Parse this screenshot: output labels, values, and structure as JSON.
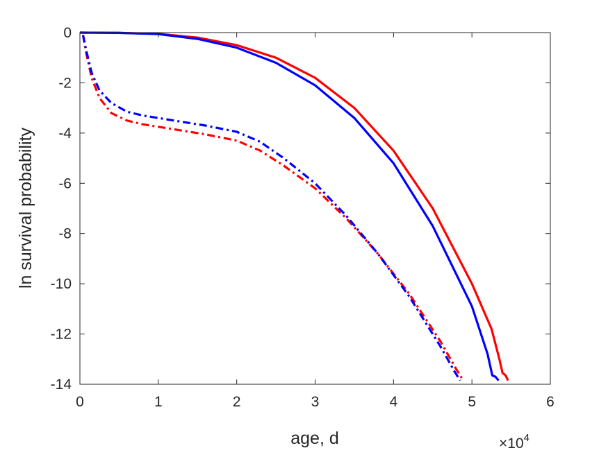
{
  "chart_data": {
    "type": "line",
    "xlabel": "age, d",
    "ylabel": "ln survival probability",
    "x_multiplier_label": "×10",
    "x_multiplier_exponent": "4",
    "xlim": [
      0,
      60000
    ],
    "ylim": [
      -14,
      0
    ],
    "xticks": [
      0,
      10000,
      20000,
      30000,
      40000,
      50000,
      60000
    ],
    "xtick_labels": [
      "0",
      "1",
      "2",
      "3",
      "4",
      "5",
      "6"
    ],
    "yticks": [
      0,
      -2,
      -4,
      -6,
      -8,
      -10,
      -12,
      -14
    ],
    "ytick_labels": [
      "0",
      "-2",
      "-4",
      "-6",
      "-8",
      "-10",
      "-12",
      "-14"
    ],
    "grid": false,
    "series": [
      {
        "color": "#ff0000",
        "style": "solid",
        "points": [
          [
            0,
            0
          ],
          [
            5000,
            -0.01
          ],
          [
            10000,
            -0.05
          ],
          [
            15000,
            -0.2
          ],
          [
            20000,
            -0.5
          ],
          [
            25000,
            -1.0
          ],
          [
            30000,
            -1.8
          ],
          [
            35000,
            -3.0
          ],
          [
            40000,
            -4.7
          ],
          [
            45000,
            -7.0
          ],
          [
            50000,
            -10.0
          ],
          [
            52500,
            -11.8
          ],
          [
            53500,
            -13.0
          ],
          [
            53900,
            -13.55
          ],
          [
            54300,
            -13.65
          ],
          [
            54600,
            -13.85
          ]
        ]
      },
      {
        "color": "#0000ff",
        "style": "solid",
        "points": [
          [
            0,
            0
          ],
          [
            5000,
            -0.01
          ],
          [
            10000,
            -0.06
          ],
          [
            15000,
            -0.25
          ],
          [
            20000,
            -0.6
          ],
          [
            25000,
            -1.2
          ],
          [
            30000,
            -2.1
          ],
          [
            35000,
            -3.4
          ],
          [
            40000,
            -5.2
          ],
          [
            45000,
            -7.7
          ],
          [
            50000,
            -10.9
          ],
          [
            52000,
            -12.8
          ],
          [
            52600,
            -13.65
          ],
          [
            53000,
            -13.7
          ],
          [
            53400,
            -13.85
          ]
        ]
      },
      {
        "color": "#ff0000",
        "style": "dashdot",
        "points": [
          [
            400,
            -0.1
          ],
          [
            800,
            -0.8
          ],
          [
            1500,
            -1.8
          ],
          [
            2500,
            -2.6
          ],
          [
            4000,
            -3.2
          ],
          [
            6000,
            -3.5
          ],
          [
            8000,
            -3.65
          ],
          [
            10000,
            -3.75
          ],
          [
            13000,
            -3.9
          ],
          [
            16000,
            -4.05
          ],
          [
            20000,
            -4.3
          ],
          [
            23000,
            -4.7
          ],
          [
            26000,
            -5.3
          ],
          [
            30000,
            -6.2
          ],
          [
            34000,
            -7.4
          ],
          [
            38000,
            -8.8
          ],
          [
            42000,
            -10.4
          ],
          [
            46000,
            -12.3
          ],
          [
            48000,
            -13.4
          ],
          [
            48900,
            -13.85
          ]
        ]
      },
      {
        "color": "#0000ff",
        "style": "dashdot",
        "points": [
          [
            400,
            -0.1
          ],
          [
            800,
            -0.7
          ],
          [
            1500,
            -1.6
          ],
          [
            2500,
            -2.3
          ],
          [
            4000,
            -2.8
          ],
          [
            6000,
            -3.15
          ],
          [
            8000,
            -3.3
          ],
          [
            10000,
            -3.4
          ],
          [
            13000,
            -3.55
          ],
          [
            16000,
            -3.7
          ],
          [
            20000,
            -3.95
          ],
          [
            23000,
            -4.35
          ],
          [
            26000,
            -5.0
          ],
          [
            30000,
            -6.0
          ],
          [
            34000,
            -7.3
          ],
          [
            38000,
            -8.8
          ],
          [
            42000,
            -10.5
          ],
          [
            46000,
            -12.5
          ],
          [
            47800,
            -13.5
          ],
          [
            48500,
            -13.85
          ]
        ]
      }
    ]
  }
}
